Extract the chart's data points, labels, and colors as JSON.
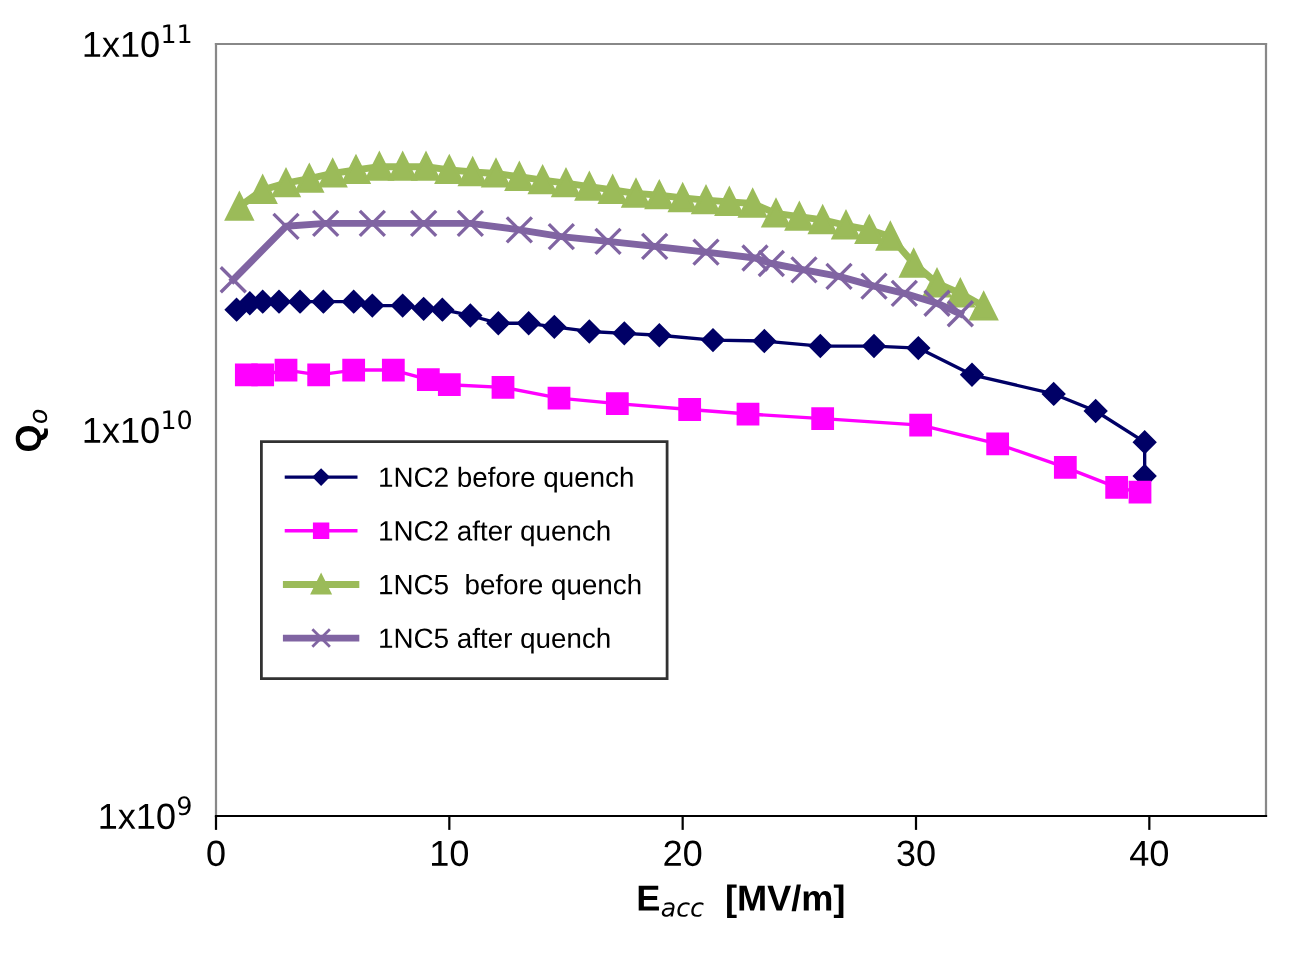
{
  "chart_data": {
    "type": "line",
    "xlabel": "E$_{acc}$  [MV/m]",
    "ylabel": "Q$_{o}$",
    "log": "y",
    "xlim": [
      0,
      45
    ],
    "xticks": [
      0,
      10,
      20,
      30,
      40
    ],
    "ylim": [
      1000000000.0,
      100000000000.0
    ],
    "yticks": [
      {
        "value": 1000000000.0,
        "label": "1x10$^{9}$"
      },
      {
        "value": 10000000000.0,
        "label": "1x10$^{10}$"
      },
      {
        "value": 100000000000.0,
        "label": "1x10$^{11}$"
      }
    ],
    "grid": false,
    "legend": "bottom left",
    "line_style": "solid",
    "series": [
      {
        "name": "1NC2 before quench",
        "color": "#000066",
        "marker": "diamond",
        "x": [
          0.88,
          1.45,
          2.0,
          2.7,
          3.6,
          4.6,
          5.9,
          6.7,
          8.0,
          8.9,
          9.7,
          10.9,
          12.1,
          13.4,
          14.5,
          16.0,
          17.5,
          19.0,
          21.3,
          23.5,
          25.9,
          28.2,
          30.1,
          32.4,
          35.9,
          37.7,
          39.8,
          39.8
        ],
        "values": [
          20500000000.0,
          21300000000.0,
          21500000000.0,
          21500000000.0,
          21500000000.0,
          21500000000.0,
          21500000000.0,
          21000000000.0,
          21000000000.0,
          20600000000.0,
          20500000000.0,
          19800000000.0,
          18900000000.0,
          18900000000.0,
          18500000000.0,
          18000000000.0,
          17800000000.0,
          17600000000.0,
          17100000000.0,
          17000000000.0,
          16500000000.0,
          16500000000.0,
          16300000000.0,
          13900000000.0,
          12400000000.0,
          11200000000.0,
          9300000000.0,
          7600000000.0
        ]
      },
      {
        "name": "1NC2 after quench",
        "color": "#ff00ff",
        "marker": "square",
        "x": [
          1.3,
          2.0,
          3.0,
          4.4,
          5.9,
          7.6,
          9.1,
          10.0,
          12.3,
          14.7,
          17.2,
          20.3,
          22.8,
          26.0,
          30.2,
          33.5,
          36.4,
          38.6,
          39.6
        ],
        "values": [
          13900000000.0,
          13900000000.0,
          14300000000.0,
          13900000000.0,
          14300000000.0,
          14300000000.0,
          13500000000.0,
          13100000000.0,
          12900000000.0,
          12100000000.0,
          11700000000.0,
          11300000000.0,
          11000000000.0,
          10700000000.0,
          10300000000.0,
          9200000000.0,
          8000000000.0,
          7100000000.0,
          6900000000.0
        ]
      },
      {
        "name": "1NC5  before quench",
        "color": "#9bbb59",
        "marker": "triangle",
        "x": [
          1.0,
          2.0,
          3.0,
          4.0,
          5.0,
          6.0,
          7.0,
          8.0,
          9.0,
          10.0,
          11.0,
          12.0,
          13.0,
          14.0,
          15.0,
          16.0,
          17.0,
          18.0,
          19.0,
          20.0,
          21.0,
          22.0,
          23.0,
          24.0,
          25.0,
          26.0,
          27.0,
          28.0,
          28.9,
          29.9,
          30.9,
          31.9,
          32.9
        ],
        "values": [
          37900000000.0,
          41900000000.0,
          43600000000.0,
          44800000000.0,
          46200000000.0,
          47200000000.0,
          48100000000.0,
          48100000000.0,
          48100000000.0,
          47200000000.0,
          46600000000.0,
          46200000000.0,
          45300000000.0,
          44400000000.0,
          43600000000.0,
          42700000000.0,
          41900000000.0,
          41000000000.0,
          40600000000.0,
          39900000000.0,
          39400000000.0,
          39000000000.0,
          38600000000.0,
          36400000000.0,
          35700000000.0,
          35000000000.0,
          33900000000.0,
          33000000000.0,
          31700000000.0,
          27000000000.0,
          24000000000.0,
          22600000000.0,
          20900000000.0
        ]
      },
      {
        "name": "1NC5 after quench",
        "color": "#8064a2",
        "marker": "cross",
        "x": [
          0.74,
          3.0,
          4.7,
          6.7,
          8.9,
          10.9,
          13.0,
          14.8,
          16.8,
          18.8,
          21.0,
          23.1,
          23.8,
          25.2,
          26.7,
          28.2,
          29.5,
          30.9,
          31.9
        ],
        "values": [
          24500000000.0,
          33700000000.0,
          34300000000.0,
          34300000000.0,
          34300000000.0,
          34300000000.0,
          33000000000.0,
          31700000000.0,
          30800000000.0,
          29900000000.0,
          28900000000.0,
          27900000000.0,
          27000000000.0,
          26000000000.0,
          25000000000.0,
          23600000000.0,
          22600000000.0,
          21300000000.0,
          20000000000.0
        ]
      }
    ]
  }
}
